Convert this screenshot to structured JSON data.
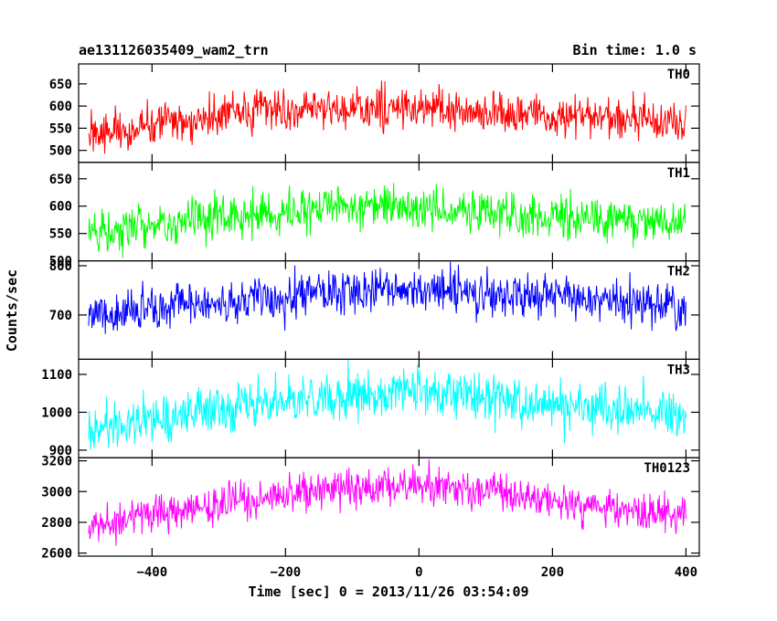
{
  "header": {
    "left_title": "ae131126035409_wam2_trn",
    "right_title": "Bin time: 1.0 s"
  },
  "chart_data": {
    "type": "line",
    "title": "ae131126035409_wam2_trn",
    "subtitle": "Bin time: 1.0 s",
    "xlabel": "Time [sec] 0 = 2013/11/26 03:54:09",
    "ylabel": "Counts/sec",
    "xlim": [
      -510,
      420
    ],
    "x_ticks": [
      -400,
      -200,
      0,
      200,
      400
    ],
    "x_tick_labels": [
      "−400",
      "−200",
      "0",
      "200",
      "400"
    ],
    "bin_time_s": 1.0,
    "x_start": -495,
    "x_end": 400,
    "series": [
      {
        "name": "TH0",
        "color": "#ff0000",
        "ylim": [
          473,
          695
        ],
        "y_ticks": [
          500,
          550,
          600,
          650
        ],
        "profile": {
          "x": [
            -495,
            -400,
            -250,
            -100,
            0,
            100,
            250,
            400
          ],
          "y": [
            540,
            560,
            585,
            597,
            595,
            585,
            575,
            565
          ]
        },
        "noise_amplitude": 30
      },
      {
        "name": "TH1",
        "color": "#00ff00",
        "ylim": [
          500,
          680
        ],
        "y_ticks": [
          500,
          550,
          600,
          650
        ],
        "profile": {
          "x": [
            -495,
            -400,
            -250,
            -100,
            0,
            100,
            250,
            400
          ],
          "y": [
            555,
            565,
            585,
            600,
            598,
            590,
            580,
            570
          ]
        },
        "noise_amplitude": 26
      },
      {
        "name": "TH2",
        "color": "#0000ff",
        "ylim": [
          610,
          810
        ],
        "y_ticks": [
          700,
          800
        ],
        "profile": {
          "x": [
            -495,
            -400,
            -250,
            -100,
            0,
            100,
            250,
            400
          ],
          "y": [
            700,
            715,
            735,
            748,
            750,
            745,
            735,
            715
          ]
        },
        "noise_amplitude": 30
      },
      {
        "name": "TH3",
        "color": "#00ffff",
        "ylim": [
          880,
          1140
        ],
        "y_ticks": [
          900,
          1000,
          1100
        ],
        "profile": {
          "x": [
            -495,
            -400,
            -250,
            -100,
            0,
            100,
            250,
            400
          ],
          "y": [
            960,
            985,
            1020,
            1045,
            1055,
            1040,
            1010,
            990
          ]
        },
        "noise_amplitude": 42
      },
      {
        "name": "TH0123",
        "color": "#ff00ff",
        "ylim": [
          2580,
          3220
        ],
        "y_ticks": [
          2600,
          2800,
          3000,
          3200
        ],
        "profile": {
          "x": [
            -495,
            -400,
            -250,
            -100,
            0,
            100,
            250,
            400
          ],
          "y": [
            2780,
            2850,
            2960,
            3020,
            3040,
            3000,
            2920,
            2840
          ]
        },
        "noise_amplitude": 85
      }
    ]
  }
}
